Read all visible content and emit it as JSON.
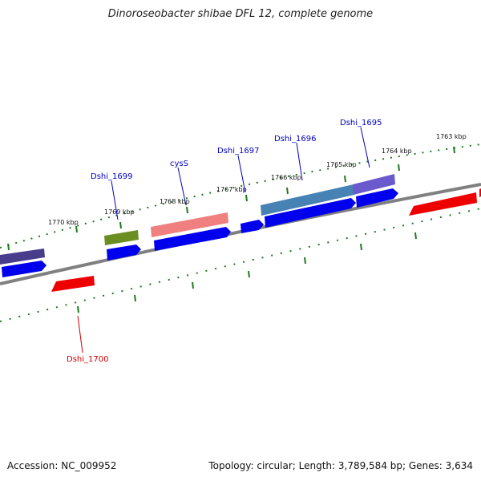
{
  "title": "Dinoroseobacter shibae DFL 12, complete genome",
  "footer": {
    "accession": "Accession: NC_009952",
    "topology": "Topology: circular; Length: 3,789,584 bp; Genes: 3,634"
  },
  "scale_labels": [
    "1763 kbp",
    "1764 kbp",
    "1765 kbp",
    "1766 kbp",
    "1767 kbp",
    "1768 kbp",
    "1769 kbp",
    "1770 kbp"
  ],
  "gene_labels": [
    {
      "name": "Dshi_1695",
      "color": "#0000c0"
    },
    {
      "name": "Dshi_1696",
      "color": "#0000c0"
    },
    {
      "name": "Dshi_1697",
      "color": "#0000c0"
    },
    {
      "name": "cysS",
      "color": "#0000c0"
    },
    {
      "name": "Dshi_1699",
      "color": "#0000c0"
    },
    {
      "name": "Dshi_1700",
      "color": "#d00000"
    }
  ],
  "colors": {
    "backbone": "#808080",
    "forward_gene": "#0000ee",
    "reverse_gene": "#ee0000",
    "tick": "#1a7a1a",
    "feature_olive": "#6b8e23",
    "feature_pink": "#f08080",
    "feature_steelblue": "#4682b4",
    "feature_slate": "#6a5acd",
    "feature_darkslate": "#483d8b"
  }
}
